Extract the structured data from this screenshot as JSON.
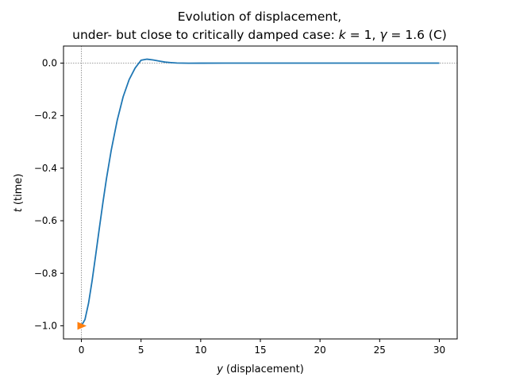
{
  "chart_data": {
    "type": "line",
    "title_line1": "Evolution of displacement,",
    "title_line2_prefix": "under- but close to critically damped case: ",
    "title_k_var": "k",
    "title_k_value": " = 1, ",
    "title_gamma_var": "γ",
    "title_gamma_value": " = 1.6 (C)",
    "xlabel_var": "y",
    "xlabel_text": " (displacement)",
    "ylabel_var": "t",
    "ylabel_text": " (time)",
    "xlim": [
      -1.5,
      31.5
    ],
    "ylim": [
      -1.05,
      0.065
    ],
    "x_ticks": [
      0,
      5,
      10,
      15,
      20,
      25,
      30
    ],
    "x_tick_labels": [
      "0",
      "5",
      "10",
      "15",
      "20",
      "25",
      "30"
    ],
    "y_ticks": [
      0.0,
      -0.2,
      -0.4,
      -0.6,
      -0.8,
      -1.0
    ],
    "y_tick_labels": [
      "0.0",
      "−0.2",
      "−0.4",
      "−0.6",
      "−0.8",
      "−1.0"
    ],
    "reference_lines": {
      "x": 0,
      "y": 0,
      "style": "dotted",
      "color": "#808080"
    },
    "series": [
      {
        "color": "#1f77b4",
        "x": [
          0,
          0.3,
          0.6,
          0.9,
          1.2,
          1.5,
          1.8,
          2.1,
          2.5,
          3.0,
          3.5,
          4.0,
          4.5,
          5.0,
          5.5,
          6.0,
          6.5,
          7.0,
          7.5,
          8.0,
          9.0,
          10.0,
          12.0,
          15.0,
          20.0,
          25.0,
          30.0
        ],
        "y": [
          -1.0,
          -0.976,
          -0.914,
          -0.828,
          -0.73,
          -0.63,
          -0.532,
          -0.44,
          -0.332,
          -0.218,
          -0.128,
          -0.063,
          -0.019,
          0.011,
          0.015,
          0.012,
          0.008,
          0.004,
          0.002,
          0.0005,
          -0.0003,
          -0.0002,
          0.0,
          0.0,
          0.0,
          0.0,
          0.0
        ]
      }
    ],
    "marker": {
      "x": 0,
      "y": -1.0,
      "shape": "triangle-right",
      "color": "#ff7f0e"
    },
    "grid": false,
    "legend": false
  }
}
